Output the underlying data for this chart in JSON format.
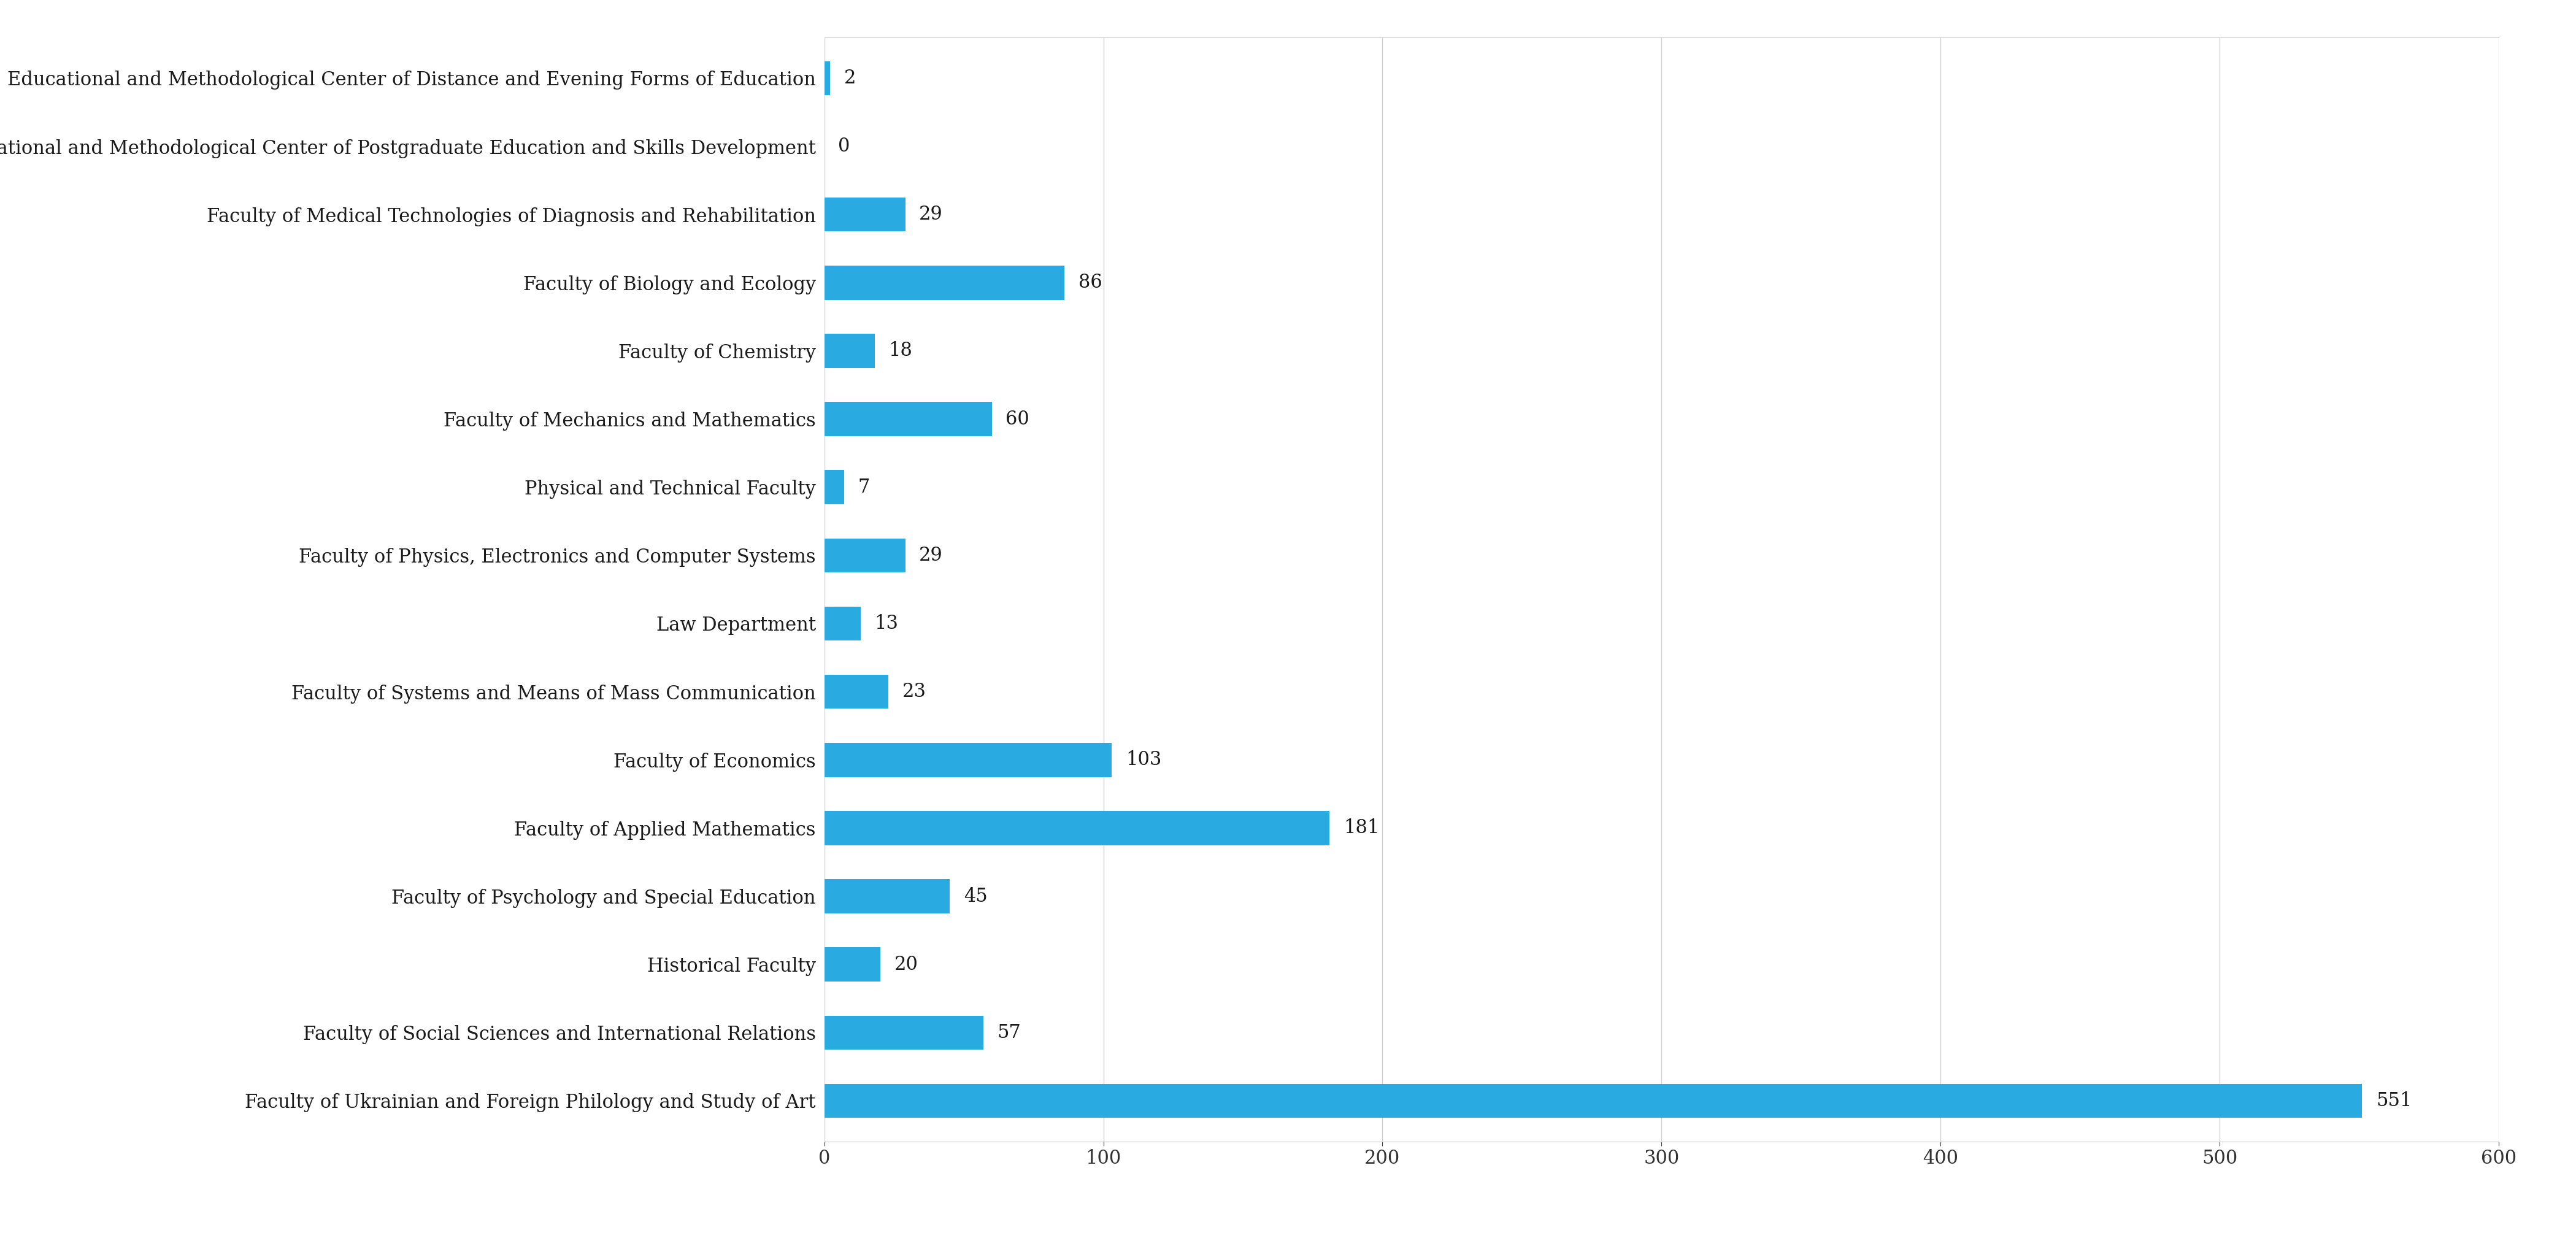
{
  "categories": [
    "Faculty of Ukrainian and Foreign Philology and Study of Art",
    "Faculty of Social Sciences and International Relations",
    "Historical Faculty",
    "Faculty of Psychology and Special Education",
    "Faculty of Applied Mathematics",
    "Faculty of Economics",
    "Faculty of Systems and Means of Mass Communication",
    "Law Department",
    "Faculty of Physics, Electronics and Computer Systems",
    "Physical and Technical Faculty",
    "Faculty of Mechanics and Mathematics",
    "Faculty of Chemistry",
    "Faculty of Biology and Ecology",
    "Faculty of Medical Technologies of Diagnosis and Rehabilitation",
    "Educational and Methodological Center of Postgraduate Education and Skills Development",
    "Educational and Methodological Center of Distance and Evening Forms of Education"
  ],
  "values": [
    551,
    57,
    20,
    45,
    181,
    103,
    23,
    13,
    29,
    7,
    60,
    18,
    86,
    29,
    0,
    2
  ],
  "bar_color": "#29ABE2",
  "label_color": "#1a1a1a",
  "value_color": "#1a1a1a",
  "background_color": "#ffffff",
  "xlim": [
    0,
    600
  ],
  "xticks": [
    0,
    100,
    200,
    300,
    400,
    500,
    600
  ],
  "grid_color": "#d0d0d0",
  "bar_height": 0.5,
  "label_fontsize": 22,
  "value_fontsize": 22,
  "tick_fontsize": 22,
  "font_family": "serif"
}
